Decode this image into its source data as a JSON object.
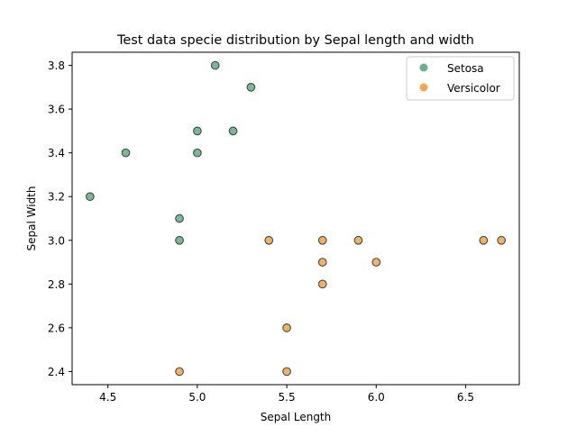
{
  "chart_data": {
    "type": "scatter",
    "title": "Test data specie distribution by Sepal length and width",
    "xlabel": "Sepal Length",
    "ylabel": "Sepal Width",
    "xlim": [
      4.3,
      6.8
    ],
    "ylim": [
      2.34,
      3.86
    ],
    "x_ticks": [
      "4.5",
      "5.0",
      "5.5",
      "6.0",
      "6.5"
    ],
    "y_ticks": [
      "2.4",
      "2.6",
      "2.8",
      "3.0",
      "3.2",
      "3.4",
      "3.6",
      "3.8"
    ],
    "grid": false,
    "legend_position": "top-right",
    "series": [
      {
        "name": "Setosa",
        "color": "#6aaf8e",
        "points": [
          {
            "x": 5.1,
            "y": 3.8
          },
          {
            "x": 5.3,
            "y": 3.7
          },
          {
            "x": 5.0,
            "y": 3.5
          },
          {
            "x": 5.2,
            "y": 3.5
          },
          {
            "x": 4.6,
            "y": 3.4
          },
          {
            "x": 5.0,
            "y": 3.4
          },
          {
            "x": 4.4,
            "y": 3.2
          },
          {
            "x": 4.9,
            "y": 3.1
          },
          {
            "x": 4.9,
            "y": 3.0
          }
        ]
      },
      {
        "name": "Versicolor",
        "color": "#f5a74f",
        "points": [
          {
            "x": 5.4,
            "y": 3.0
          },
          {
            "x": 5.7,
            "y": 3.0
          },
          {
            "x": 5.9,
            "y": 3.0
          },
          {
            "x": 6.6,
            "y": 3.0
          },
          {
            "x": 6.7,
            "y": 3.0
          },
          {
            "x": 5.7,
            "y": 2.9
          },
          {
            "x": 6.0,
            "y": 2.9
          },
          {
            "x": 5.7,
            "y": 2.8
          },
          {
            "x": 5.5,
            "y": 2.6
          },
          {
            "x": 4.9,
            "y": 2.4
          },
          {
            "x": 5.5,
            "y": 2.4
          }
        ]
      }
    ]
  }
}
